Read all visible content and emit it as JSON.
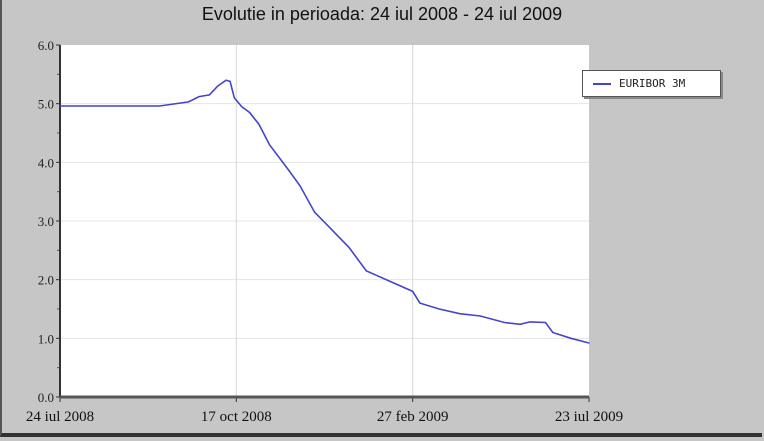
{
  "chart_data": {
    "type": "line",
    "title": "Evolutie in perioada: 24 iul 2008 - 24 iul 2009",
    "xlabel": "",
    "ylabel": "",
    "ylim": [
      0,
      6
    ],
    "yticks": [
      "0.0",
      "1.0",
      "2.0",
      "3.0",
      "4.0",
      "5.0",
      "6.0"
    ],
    "xticks": [
      {
        "date": "2008-07-24",
        "label": "24 iul 2008"
      },
      {
        "date": "2008-10-17",
        "label": "17 oct 2008"
      },
      {
        "date": "2009-02-27",
        "label": "27 feb 2009"
      },
      {
        "date": "2009-07-23",
        "label": "23 iul 2009"
      }
    ],
    "grid": true,
    "legend_position": "top-right",
    "series": [
      {
        "name": "EURIBOR 3M",
        "color": "#4444cc",
        "points": [
          [
            "2008-07-24",
            4.96
          ],
          [
            "2008-09-10",
            4.96
          ],
          [
            "2008-09-24",
            5.03
          ],
          [
            "2008-09-29",
            5.12
          ],
          [
            "2008-10-04",
            5.15
          ],
          [
            "2008-10-08",
            5.3
          ],
          [
            "2008-10-12",
            5.4
          ],
          [
            "2008-10-14",
            5.38
          ],
          [
            "2008-10-16",
            5.1
          ],
          [
            "2008-10-21",
            4.95
          ],
          [
            "2008-10-27",
            4.85
          ],
          [
            "2008-11-03",
            4.65
          ],
          [
            "2008-11-11",
            4.3
          ],
          [
            "2008-11-26",
            3.85
          ],
          [
            "2008-12-04",
            3.6
          ],
          [
            "2008-12-15",
            3.15
          ],
          [
            "2008-12-26",
            2.9
          ],
          [
            "2009-01-10",
            2.55
          ],
          [
            "2009-01-23",
            2.15
          ],
          [
            "2009-02-02",
            2.05
          ],
          [
            "2009-02-17",
            1.9
          ],
          [
            "2009-02-27",
            1.8
          ],
          [
            "2009-03-05",
            1.6
          ],
          [
            "2009-03-21",
            1.5
          ],
          [
            "2009-04-07",
            1.42
          ],
          [
            "2009-04-24",
            1.38
          ],
          [
            "2009-05-14",
            1.27
          ],
          [
            "2009-05-27",
            1.24
          ],
          [
            "2009-06-04",
            1.28
          ],
          [
            "2009-06-17",
            1.27
          ],
          [
            "2009-06-23",
            1.1
          ],
          [
            "2009-07-08",
            1.0
          ],
          [
            "2009-07-23",
            0.92
          ]
        ]
      }
    ]
  }
}
